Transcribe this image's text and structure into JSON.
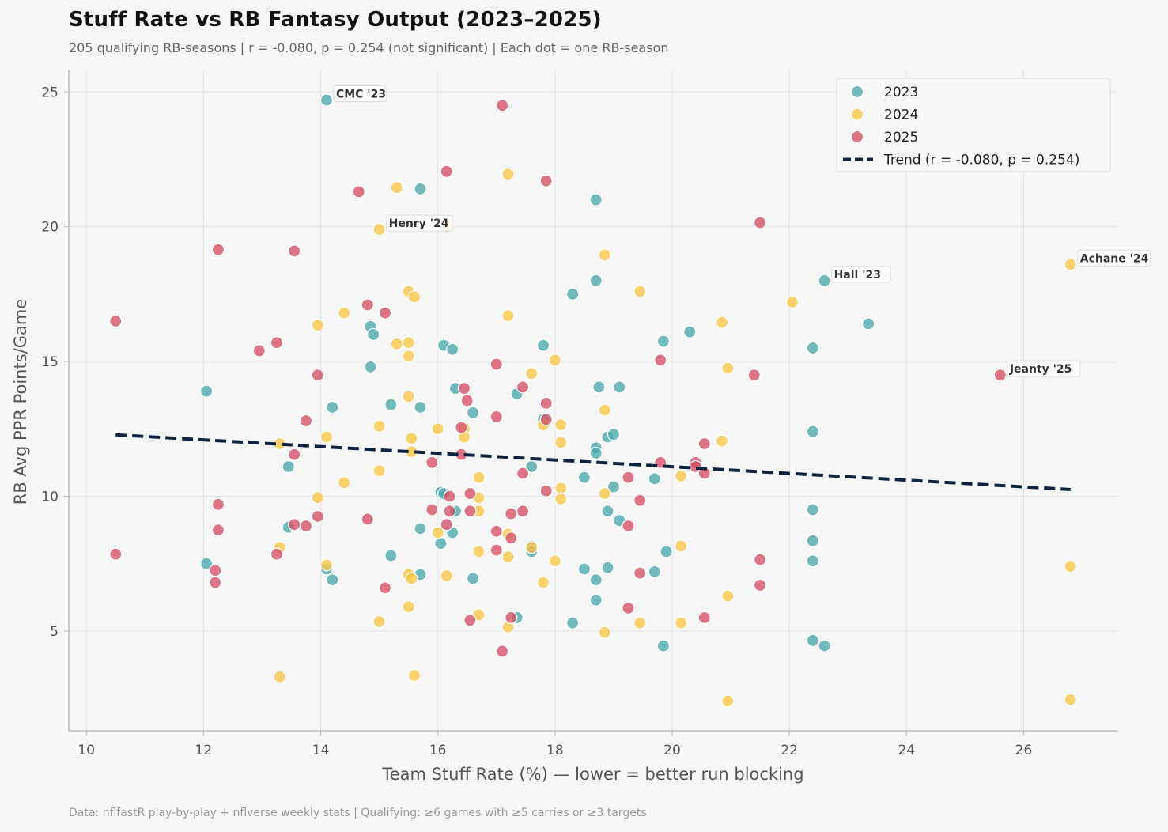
{
  "title": "Stuff Rate vs RB Fantasy Output (2023–2025)",
  "subtitle": "205 qualifying RB-seasons  |  r = -0.080, p = 0.254 (not significant)  |  Each dot = one RB-season",
  "footer": "Data: nflfastR play-by-play + nflverse weekly stats  |  Qualifying: ≥6 games with ≥5 carries or ≥3 targets",
  "colors": {
    "s2023": "#4aa8ad",
    "s2024": "#fcc647",
    "s2025": "#d64f66",
    "trend": "#0d2340",
    "background": "#f7f7f7"
  },
  "chart_data": {
    "type": "scatter",
    "xlabel": "Team Stuff Rate (%) — lower = better run blocking",
    "ylabel": "RB Avg PPR Points/Game",
    "xlim": [
      9.7,
      27.6
    ],
    "ylim": [
      1.3,
      25.8
    ],
    "xticks": [
      10,
      12,
      14,
      16,
      18,
      20,
      22,
      24,
      26
    ],
    "yticks": [
      5,
      10,
      15,
      20,
      25
    ],
    "grid": true,
    "legend_position": "top-right",
    "series": [
      {
        "name": "2023",
        "points": [
          [
            14.1,
            24.7
          ],
          [
            15.7,
            21.4
          ],
          [
            18.7,
            21.0
          ],
          [
            18.7,
            18.0
          ],
          [
            18.3,
            17.5
          ],
          [
            22.6,
            18.0
          ],
          [
            23.35,
            16.4
          ],
          [
            14.85,
            16.3
          ],
          [
            14.9,
            16.0
          ],
          [
            16.1,
            15.6
          ],
          [
            16.25,
            15.45
          ],
          [
            17.8,
            15.6
          ],
          [
            19.85,
            15.75
          ],
          [
            20.3,
            16.1
          ],
          [
            22.4,
            15.5
          ],
          [
            14.85,
            14.8
          ],
          [
            12.05,
            13.9
          ],
          [
            16.3,
            14.0
          ],
          [
            17.35,
            13.8
          ],
          [
            18.75,
            14.05
          ],
          [
            19.1,
            14.05
          ],
          [
            14.2,
            13.3
          ],
          [
            15.2,
            13.4
          ],
          [
            15.7,
            13.3
          ],
          [
            16.6,
            13.1
          ],
          [
            17.8,
            12.85
          ],
          [
            18.7,
            11.8
          ],
          [
            18.7,
            11.6
          ],
          [
            18.9,
            12.2
          ],
          [
            19.0,
            12.3
          ],
          [
            22.4,
            12.4
          ],
          [
            13.45,
            11.1
          ],
          [
            17.6,
            11.1
          ],
          [
            18.5,
            10.7
          ],
          [
            19.0,
            10.35
          ],
          [
            19.7,
            10.65
          ],
          [
            16.05,
            10.15
          ],
          [
            16.1,
            10.1
          ],
          [
            16.3,
            9.45
          ],
          [
            18.9,
            9.45
          ],
          [
            19.1,
            9.1
          ],
          [
            22.4,
            9.5
          ],
          [
            13.45,
            8.85
          ],
          [
            15.7,
            8.8
          ],
          [
            16.25,
            8.65
          ],
          [
            16.05,
            8.25
          ],
          [
            17.6,
            8.15
          ],
          [
            17.6,
            7.95
          ],
          [
            19.9,
            7.95
          ],
          [
            22.4,
            8.35
          ],
          [
            22.4,
            7.6
          ],
          [
            12.05,
            7.5
          ],
          [
            14.1,
            7.3
          ],
          [
            14.2,
            6.9
          ],
          [
            15.2,
            7.8
          ],
          [
            15.7,
            7.1
          ],
          [
            16.6,
            6.95
          ],
          [
            18.5,
            7.3
          ],
          [
            18.7,
            6.9
          ],
          [
            18.9,
            7.35
          ],
          [
            19.7,
            7.2
          ],
          [
            18.7,
            6.15
          ],
          [
            17.35,
            5.5
          ],
          [
            18.3,
            5.3
          ],
          [
            19.85,
            4.45
          ],
          [
            22.4,
            4.65
          ],
          [
            22.6,
            4.45
          ]
        ]
      },
      {
        "name": "2024",
        "points": [
          [
            15.3,
            21.45
          ],
          [
            17.2,
            21.95
          ],
          [
            15.0,
            19.9
          ],
          [
            16.15,
            20.0
          ],
          [
            18.85,
            18.95
          ],
          [
            15.5,
            17.6
          ],
          [
            15.6,
            17.4
          ],
          [
            19.45,
            17.6
          ],
          [
            22.05,
            17.2
          ],
          [
            26.8,
            18.6
          ],
          [
            14.4,
            16.8
          ],
          [
            13.95,
            16.35
          ],
          [
            17.2,
            16.7
          ],
          [
            20.85,
            16.45
          ],
          [
            15.3,
            15.65
          ],
          [
            15.5,
            15.7
          ],
          [
            15.5,
            15.2
          ],
          [
            17.6,
            14.55
          ],
          [
            18.0,
            15.05
          ],
          [
            20.95,
            14.75
          ],
          [
            15.5,
            13.7
          ],
          [
            18.85,
            13.2
          ],
          [
            17.8,
            12.65
          ],
          [
            18.1,
            12.65
          ],
          [
            15.0,
            12.6
          ],
          [
            16.0,
            12.5
          ],
          [
            16.45,
            12.5
          ],
          [
            13.3,
            11.95
          ],
          [
            14.1,
            12.2
          ],
          [
            15.55,
            12.15
          ],
          [
            16.45,
            12.2
          ],
          [
            18.1,
            12.0
          ],
          [
            20.85,
            12.05
          ],
          [
            15.55,
            11.65
          ],
          [
            14.4,
            10.5
          ],
          [
            15.0,
            10.95
          ],
          [
            16.7,
            10.7
          ],
          [
            13.95,
            9.95
          ],
          [
            16.7,
            9.95
          ],
          [
            18.1,
            10.3
          ],
          [
            18.1,
            9.9
          ],
          [
            18.85,
            10.1
          ],
          [
            20.15,
            10.75
          ],
          [
            16.7,
            9.45
          ],
          [
            16.0,
            8.65
          ],
          [
            17.2,
            8.6
          ],
          [
            17.6,
            8.1
          ],
          [
            13.3,
            8.1
          ],
          [
            20.15,
            8.15
          ],
          [
            14.1,
            7.45
          ],
          [
            16.7,
            7.95
          ],
          [
            17.2,
            7.75
          ],
          [
            18.0,
            7.6
          ],
          [
            15.5,
            7.1
          ],
          [
            15.55,
            6.95
          ],
          [
            16.15,
            7.05
          ],
          [
            17.8,
            6.8
          ],
          [
            20.95,
            6.3
          ],
          [
            26.8,
            7.4
          ],
          [
            15.5,
            5.9
          ],
          [
            15.0,
            5.35
          ],
          [
            16.7,
            5.6
          ],
          [
            17.2,
            5.15
          ],
          [
            18.85,
            4.95
          ],
          [
            19.45,
            5.3
          ],
          [
            20.15,
            5.3
          ],
          [
            13.3,
            3.3
          ],
          [
            15.6,
            3.35
          ],
          [
            20.95,
            2.4
          ],
          [
            26.8,
            2.45
          ]
        ]
      },
      {
        "name": "2025",
        "points": [
          [
            17.1,
            24.5
          ],
          [
            16.15,
            22.05
          ],
          [
            14.65,
            21.3
          ],
          [
            17.85,
            21.7
          ],
          [
            12.25,
            19.15
          ],
          [
            13.55,
            19.1
          ],
          [
            21.5,
            20.15
          ],
          [
            10.5,
            16.5
          ],
          [
            14.8,
            17.1
          ],
          [
            15.1,
            16.8
          ],
          [
            12.95,
            15.4
          ],
          [
            13.25,
            15.7
          ],
          [
            13.95,
            14.5
          ],
          [
            17.0,
            14.9
          ],
          [
            19.8,
            15.05
          ],
          [
            21.4,
            14.5
          ],
          [
            25.6,
            14.5
          ],
          [
            16.45,
            14.0
          ],
          [
            16.5,
            13.55
          ],
          [
            17.45,
            14.05
          ],
          [
            17.85,
            13.45
          ],
          [
            13.75,
            12.8
          ],
          [
            17.0,
            12.95
          ],
          [
            17.85,
            12.85
          ],
          [
            16.4,
            12.55
          ],
          [
            13.55,
            11.55
          ],
          [
            15.9,
            11.25
          ],
          [
            16.4,
            11.55
          ],
          [
            17.45,
            10.85
          ],
          [
            19.8,
            11.25
          ],
          [
            20.4,
            11.25
          ],
          [
            20.4,
            11.1
          ],
          [
            20.55,
            11.95
          ],
          [
            20.55,
            10.85
          ],
          [
            17.85,
            10.2
          ],
          [
            19.25,
            10.7
          ],
          [
            19.45,
            9.85
          ],
          [
            16.2,
            10.0
          ],
          [
            16.55,
            10.1
          ],
          [
            12.25,
            9.7
          ],
          [
            13.95,
            9.25
          ],
          [
            15.9,
            9.5
          ],
          [
            16.2,
            9.45
          ],
          [
            16.55,
            9.45
          ],
          [
            17.25,
            9.35
          ],
          [
            17.45,
            9.45
          ],
          [
            12.25,
            8.75
          ],
          [
            13.55,
            8.95
          ],
          [
            13.75,
            8.9
          ],
          [
            14.8,
            9.15
          ],
          [
            16.15,
            8.95
          ],
          [
            17.0,
            8.7
          ],
          [
            17.25,
            8.45
          ],
          [
            19.25,
            8.9
          ],
          [
            13.25,
            7.85
          ],
          [
            10.5,
            7.85
          ],
          [
            12.2,
            7.25
          ],
          [
            12.2,
            6.8
          ],
          [
            17.0,
            8.0
          ],
          [
            15.1,
            6.6
          ],
          [
            19.45,
            7.15
          ],
          [
            21.5,
            7.65
          ],
          [
            21.5,
            6.7
          ],
          [
            19.25,
            5.85
          ],
          [
            20.55,
            5.5
          ],
          [
            16.55,
            5.4
          ],
          [
            17.25,
            5.5
          ],
          [
            17.1,
            4.25
          ]
        ]
      }
    ],
    "trend": {
      "label": "Trend  (r = -0.080, p = 0.254)",
      "x": [
        10.5,
        26.8
      ],
      "y": [
        12.28,
        10.25
      ]
    },
    "annotations": [
      {
        "text": "CMC '23",
        "x": 14.1,
        "y": 24.7
      },
      {
        "text": "Henry '24",
        "x": 15.0,
        "y": 19.9
      },
      {
        "text": "Hall '23",
        "x": 22.6,
        "y": 18.0
      },
      {
        "text": "Achane '24",
        "x": 26.8,
        "y": 18.6
      },
      {
        "text": "Jeanty '25",
        "x": 25.6,
        "y": 14.5
      }
    ]
  }
}
